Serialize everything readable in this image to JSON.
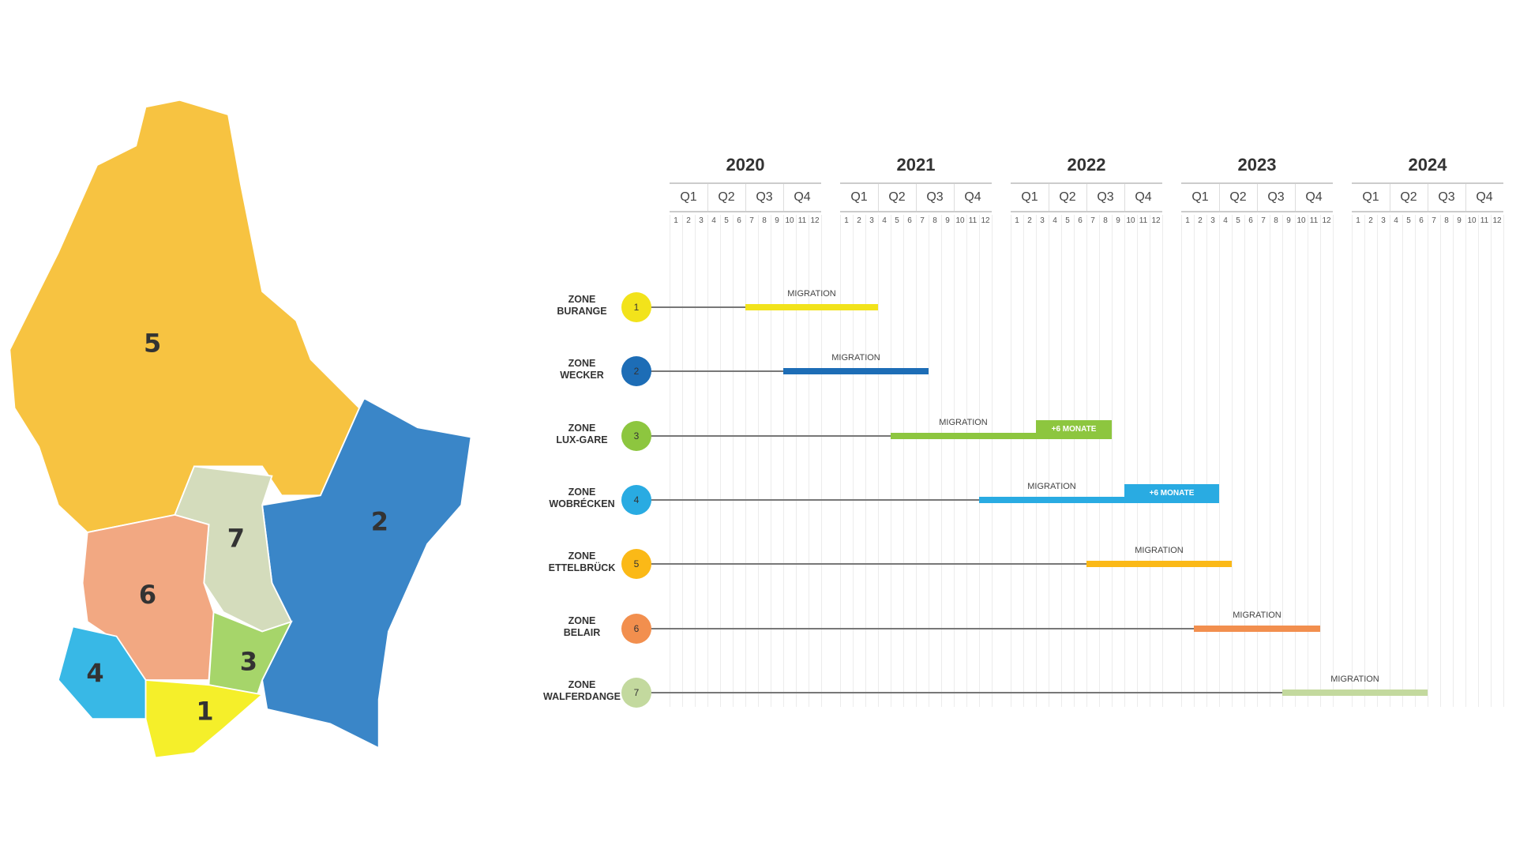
{
  "chart_data": {
    "type": "gantt",
    "years": [
      "2020",
      "2021",
      "2022",
      "2023",
      "2024"
    ],
    "quarters": [
      "Q1",
      "Q2",
      "Q3",
      "Q4"
    ],
    "months": [
      "1",
      "2",
      "3",
      "4",
      "5",
      "6",
      "7",
      "8",
      "9",
      "10",
      "11",
      "12"
    ],
    "bar_label": "MIGRATION",
    "extension_label": "+6 MONATE",
    "zones": [
      {
        "number": "1",
        "line1": "ZONE",
        "line2": "BURANGE",
        "color": "#f2e31b",
        "start": "2020-07",
        "end": "2021-03"
      },
      {
        "number": "2",
        "line1": "ZONE",
        "line2": "WECKER",
        "color": "#1d6db6",
        "start": "2020-10",
        "end": "2021-07"
      },
      {
        "number": "3",
        "line1": "ZONE",
        "line2": "LUX-GARE",
        "color": "#8dc63f",
        "start": "2021-05",
        "end": "2022-02",
        "extension_end": "2022-08"
      },
      {
        "number": "4",
        "line1": "ZONE",
        "line2": "WOBRÉCKEN",
        "color": "#29abe2",
        "start": "2021-12",
        "end": "2022-09",
        "extension_end": "2023-03"
      },
      {
        "number": "5",
        "line1": "ZONE",
        "line2": "ETTELBRÜCK",
        "color": "#fbb917",
        "start": "2022-07",
        "end": "2023-04"
      },
      {
        "number": "6",
        "line1": "ZONE",
        "line2": "BELAIR",
        "color": "#f28f4e",
        "start": "2023-02",
        "end": "2023-11"
      },
      {
        "number": "7",
        "line1": "ZONE",
        "line2": "WALFERDANGE",
        "color": "#c3d99e",
        "start": "2023-09",
        "end": "2024-06"
      }
    ]
  },
  "map": {
    "region_labels": [
      "5",
      "2",
      "7",
      "6",
      "3",
      "4",
      "1"
    ],
    "colors": {
      "5": "#f7c341",
      "2": "#3a86c8",
      "7": "#d4dcbc",
      "6": "#f2a882",
      "3": "#a6d56a",
      "4": "#38b8e6",
      "1": "#f5ef2a"
    }
  }
}
